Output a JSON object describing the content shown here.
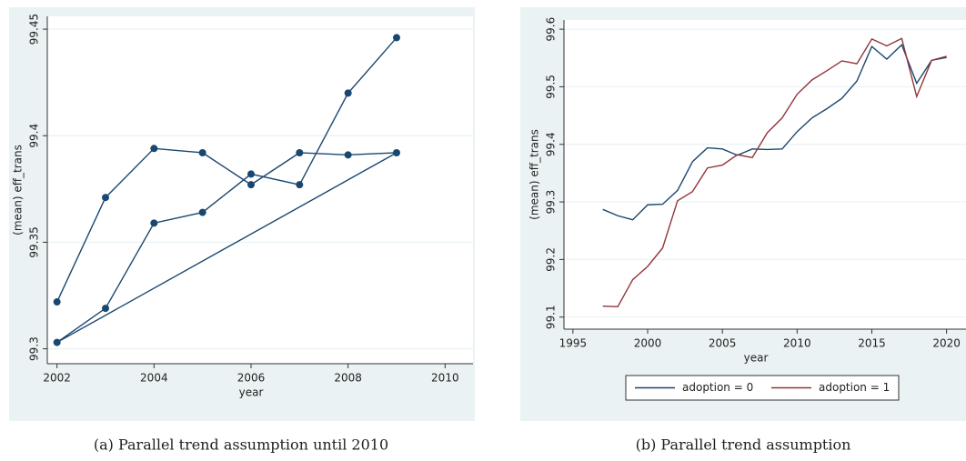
{
  "chart_data": [
    {
      "type": "line",
      "caption": "(a) Parallel trend assumption until 2010",
      "x_label": "year",
      "y_label": "(mean) eff_trans",
      "x": [
        2002,
        2003,
        2004,
        2005,
        2006,
        2007,
        2008,
        2009,
        2002,
        2003,
        2004,
        2005,
        2006,
        2007,
        2008,
        2009
      ],
      "series": [
        {
          "color": "#1a476f",
          "values": [
            99.322,
            99.371,
            99.394,
            99.392,
            99.377,
            99.392,
            99.391,
            99.392,
            99.303,
            99.319,
            99.359,
            99.364,
            99.382,
            99.377,
            99.42,
            99.446
          ]
        }
      ],
      "markers": true,
      "xlim": [
        2001.8,
        2010.2
      ],
      "xticks": [
        2002,
        2004,
        2006,
        2008,
        2010
      ],
      "ylim": [
        99.293,
        99.456
      ],
      "yticks": [
        99.3,
        99.35,
        99.4,
        99.45
      ],
      "grid": true
    },
    {
      "type": "line",
      "caption": "(b) Parallel trend assumption",
      "x_label": "year",
      "y_label": "(mean) eff_trans",
      "x": [
        1997,
        1998,
        1999,
        2000,
        2001,
        2002,
        2003,
        2004,
        2005,
        2006,
        2007,
        2008,
        2009,
        2010,
        2011,
        2012,
        2013,
        2014,
        2015,
        2016,
        2017,
        2018,
        2019,
        2020
      ],
      "series": [
        {
          "name": "adoption = 0",
          "color": "#1a476f",
          "values": [
            99.287,
            99.276,
            99.269,
            99.295,
            99.296,
            99.32,
            99.37,
            99.394,
            99.392,
            99.381,
            99.392,
            99.391,
            99.392,
            99.422,
            99.446,
            99.462,
            99.48,
            99.51,
            99.57,
            99.548,
            99.573,
            99.506,
            99.546,
            99.551
          ]
        },
        {
          "name": "adoption = 1",
          "color": "#90353b",
          "values": [
            99.119,
            99.118,
            99.165,
            99.188,
            99.22,
            99.302,
            99.318,
            99.359,
            99.364,
            99.382,
            99.377,
            99.42,
            99.446,
            99.487,
            99.512,
            99.528,
            99.545,
            99.54,
            99.583,
            99.571,
            99.584,
            99.483,
            99.546,
            99.553
          ]
        }
      ],
      "markers": false,
      "legend": "bottom",
      "xlim": [
        1994.4,
        2021.3
      ],
      "xticks": [
        1995,
        2000,
        2005,
        2010,
        2015,
        2020
      ],
      "ylim": [
        99.079,
        99.616
      ],
      "yticks": [
        99.1,
        99.2,
        99.3,
        99.4,
        99.5,
        99.6
      ],
      "grid": true
    }
  ]
}
